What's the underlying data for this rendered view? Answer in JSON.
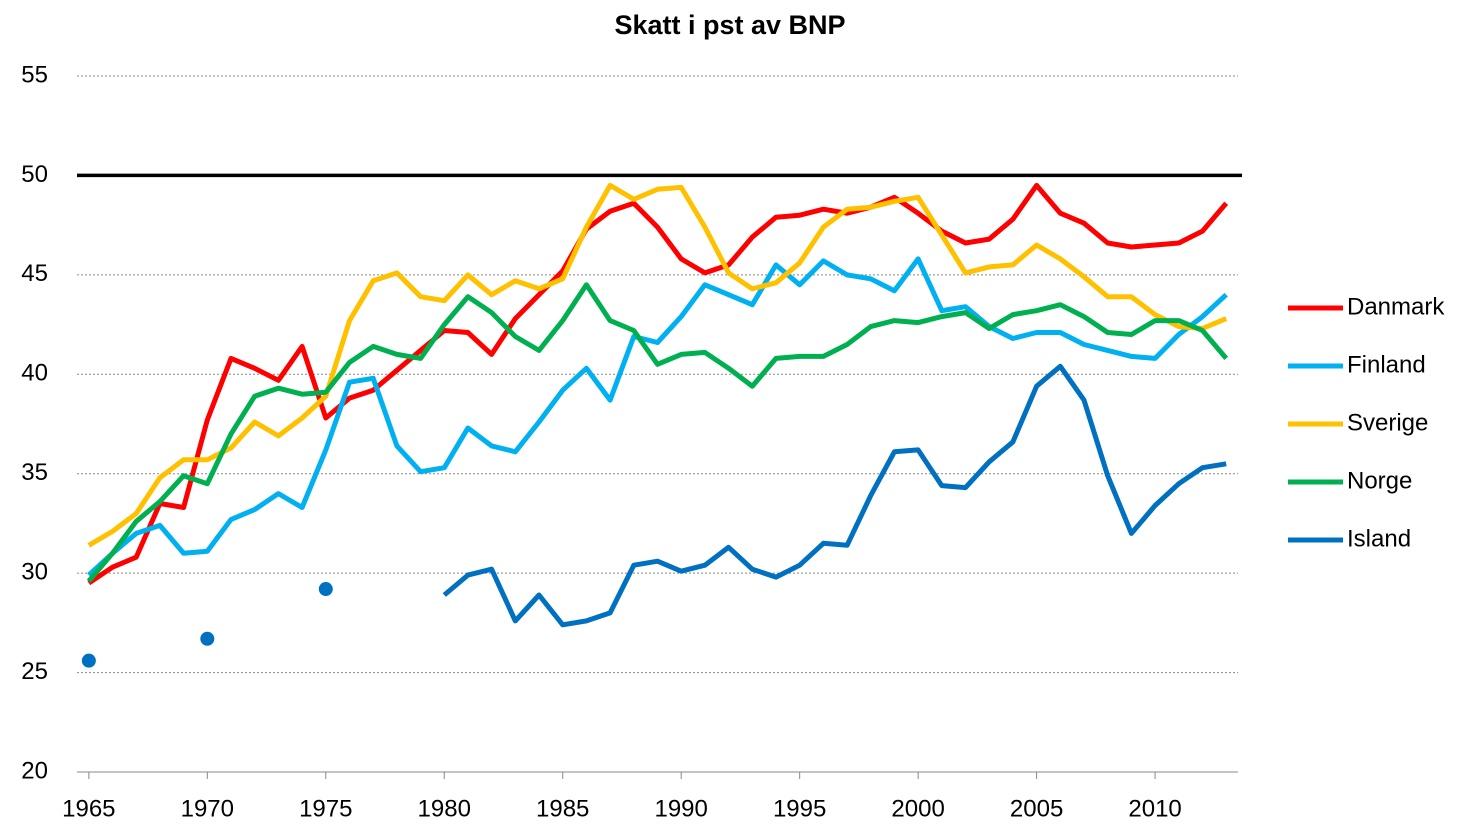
{
  "chart_data": {
    "type": "line",
    "title": "Skatt i pst av BNP",
    "x": [
      1965,
      1966,
      1967,
      1968,
      1969,
      1970,
      1971,
      1972,
      1973,
      1974,
      1975,
      1976,
      1977,
      1978,
      1979,
      1980,
      1981,
      1982,
      1983,
      1984,
      1985,
      1986,
      1987,
      1988,
      1989,
      1990,
      1991,
      1992,
      1993,
      1994,
      1995,
      1996,
      1997,
      1998,
      1999,
      2000,
      2001,
      2002,
      2003,
      2004,
      2005,
      2006,
      2007,
      2008,
      2009,
      2010,
      2011,
      2012,
      2013
    ],
    "series": [
      {
        "name": "Danmark",
        "color": "#ff0000",
        "values": [
          29.5,
          30.3,
          30.8,
          33.5,
          33.3,
          37.7,
          40.8,
          40.3,
          39.7,
          41.4,
          37.8,
          38.8,
          39.2,
          40.2,
          41.2,
          42.2,
          42.1,
          41.0,
          42.8,
          44.0,
          45.2,
          47.3,
          48.2,
          48.6,
          47.4,
          45.8,
          45.1,
          45.5,
          46.9,
          47.9,
          48.0,
          48.3,
          48.1,
          48.4,
          48.9,
          48.1,
          47.2,
          46.6,
          46.8,
          47.8,
          49.5,
          48.1,
          47.6,
          46.6,
          46.4,
          46.5,
          46.6,
          47.2,
          48.6
        ]
      },
      {
        "name": "Finland",
        "color": "#00b0f0",
        "values": [
          29.9,
          31.0,
          32.0,
          32.4,
          31.0,
          31.1,
          32.7,
          33.2,
          34.0,
          33.3,
          36.2,
          39.6,
          39.8,
          36.4,
          35.1,
          35.3,
          37.3,
          36.4,
          36.1,
          37.6,
          39.2,
          40.3,
          38.7,
          41.9,
          41.6,
          42.9,
          44.5,
          44.0,
          43.5,
          45.5,
          44.5,
          45.7,
          45.0,
          44.8,
          44.2,
          45.8,
          43.2,
          43.4,
          42.4,
          41.8,
          42.1,
          42.1,
          41.5,
          41.2,
          40.9,
          40.8,
          42.0,
          42.9,
          44.0
        ]
      },
      {
        "name": "Sverige",
        "color": "#ffc000",
        "values": [
          31.4,
          32.1,
          33.0,
          34.8,
          35.7,
          35.7,
          36.3,
          37.6,
          36.9,
          37.8,
          38.9,
          42.7,
          44.7,
          45.1,
          43.9,
          43.7,
          45.0,
          44.0,
          44.7,
          44.3,
          44.8,
          47.4,
          49.5,
          48.8,
          49.3,
          49.4,
          47.4,
          45.1,
          44.3,
          44.6,
          45.6,
          47.4,
          48.3,
          48.4,
          48.7,
          48.9,
          47.0,
          45.1,
          45.4,
          45.5,
          46.5,
          45.8,
          44.9,
          43.9,
          43.9,
          43.0,
          42.4,
          42.3,
          42.8
        ]
      },
      {
        "name": "Norge",
        "color": "#00b050",
        "values": [
          29.6,
          31.0,
          32.6,
          33.6,
          34.9,
          34.5,
          37.0,
          38.9,
          39.3,
          39.0,
          39.1,
          40.6,
          41.4,
          41.0,
          40.8,
          42.5,
          43.9,
          43.1,
          41.9,
          41.2,
          42.7,
          44.5,
          42.7,
          42.2,
          40.5,
          41.0,
          41.1,
          40.3,
          39.4,
          40.8,
          40.9,
          40.9,
          41.5,
          42.4,
          42.7,
          42.6,
          42.9,
          43.1,
          42.3,
          43.0,
          43.2,
          43.5,
          42.9,
          42.1,
          42.0,
          42.7,
          42.7,
          42.2,
          40.8
        ]
      },
      {
        "name": "Island",
        "color": "#0070c0",
        "values": [
          25.6,
          null,
          null,
          null,
          null,
          26.7,
          null,
          null,
          null,
          null,
          29.2,
          null,
          null,
          null,
          null,
          28.9,
          29.9,
          30.2,
          27.6,
          28.9,
          27.4,
          27.6,
          28.0,
          30.4,
          30.6,
          30.1,
          30.4,
          31.3,
          30.2,
          29.8,
          30.4,
          31.5,
          31.4,
          33.9,
          36.1,
          36.2,
          34.4,
          34.3,
          35.6,
          36.6,
          39.4,
          40.4,
          38.7,
          34.9,
          32.0,
          33.4,
          34.5,
          35.3,
          35.5
        ]
      }
    ],
    "xlim": [
      1964.5,
      2013.5
    ],
    "xticks": [
      1965,
      1970,
      1975,
      1980,
      1985,
      1990,
      1995,
      2000,
      2005,
      2010
    ],
    "ylim": [
      20,
      55
    ],
    "yticks": [
      20,
      25,
      30,
      35,
      40,
      45,
      50,
      55
    ],
    "grid": true,
    "reference_line": 50,
    "legend": "right"
  }
}
